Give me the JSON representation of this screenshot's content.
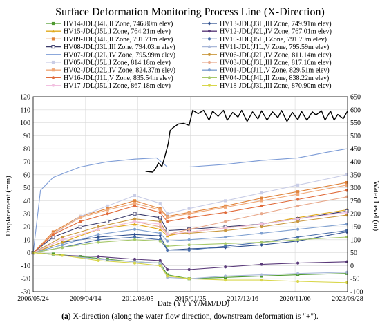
{
  "caption": {
    "label": "(a)",
    "text": " X-direction (along the water flow direction, downstream deformation is \"+\")."
  },
  "chart_data": {
    "type": "line",
    "title": "Surface Deformation Monitoring Process Line (X-Direction)",
    "xlabel": "Date (YYYY/MM/DD)",
    "ylabel": "Displacement (mm)",
    "y2label": "Water Level (m)",
    "x_ticks": [
      "2006/05/24",
      "2009/04/14",
      "2012/03/05",
      "2015/01/25",
      "2017/12/16",
      "2020/11/06",
      "2023/09/28"
    ],
    "xlim": [
      "2006/05/24",
      "2023/09/28"
    ],
    "ylim": [
      -30,
      120
    ],
    "y_ticks": [
      -30,
      -20,
      -10,
      0,
      10,
      20,
      30,
      40,
      50,
      60,
      70,
      80,
      90,
      100,
      110,
      120
    ],
    "y2lim": [
      -100,
      650
    ],
    "y2_ticks": [
      -100,
      -50,
      0,
      50,
      100,
      150,
      200,
      250,
      300,
      350,
      400,
      450,
      500,
      550,
      600,
      650
    ],
    "grid": true,
    "legend_position": "top",
    "series": [
      {
        "name": "HV14-JDL(J4L,II Zone, 746.80m elev)",
        "color": "#4e9a2f",
        "marker": "square",
        "axis": "left",
        "values": [
          [
            2006.4,
            0
          ],
          [
            2007.5,
            -1
          ],
          [
            2009,
            -3
          ],
          [
            2010.5,
            -5
          ],
          [
            2012,
            -7
          ],
          [
            2013.4,
            -8
          ],
          [
            2013.8,
            -17
          ],
          [
            2015,
            -20
          ],
          [
            2017,
            -19
          ],
          [
            2019,
            -18
          ],
          [
            2021,
            -17
          ],
          [
            2023.7,
            -16
          ]
        ]
      },
      {
        "name": "HV13-JDL(J3L,III Zone, 749.91m elev)",
        "color": "#2f4f8f",
        "marker": "diamond",
        "axis": "left",
        "values": [
          [
            2006.4,
            0
          ],
          [
            2008,
            8
          ],
          [
            2010,
            12
          ],
          [
            2012,
            14
          ],
          [
            2013.4,
            13
          ],
          [
            2013.8,
            2
          ],
          [
            2015,
            3
          ],
          [
            2017,
            4
          ],
          [
            2019,
            6
          ],
          [
            2021,
            9
          ],
          [
            2023.7,
            16
          ]
        ]
      },
      {
        "name": "HV15-JDL(J5L,I Zone, 764.21m elev)",
        "color": "#e0a818",
        "marker": "triangle",
        "axis": "left",
        "values": [
          [
            2006.4,
            0
          ],
          [
            2008,
            8
          ],
          [
            2010,
            18
          ],
          [
            2012,
            22
          ],
          [
            2013.4,
            18
          ],
          [
            2013.8,
            13
          ],
          [
            2015,
            16
          ],
          [
            2017,
            19
          ],
          [
            2019,
            22
          ],
          [
            2021,
            27
          ],
          [
            2023.7,
            33
          ]
        ]
      },
      {
        "name": "HV12-JDL(J2L,IV Zone, 767.01m elev)",
        "color": "#5a3a7a",
        "marker": "circle",
        "axis": "left",
        "values": [
          [
            2006.4,
            0
          ],
          [
            2008,
            -2
          ],
          [
            2010,
            -3
          ],
          [
            2012,
            -5
          ],
          [
            2013.4,
            -6
          ],
          [
            2013.8,
            -13
          ],
          [
            2015,
            -13
          ],
          [
            2017,
            -11
          ],
          [
            2019,
            -9
          ],
          [
            2021,
            -8
          ],
          [
            2023.7,
            -7
          ]
        ]
      },
      {
        "name": "HV09-JDL(J4L,II Zone, 791.71m elev)",
        "color": "#e0833a",
        "marker": "square",
        "axis": "left",
        "values": [
          [
            2006.4,
            0
          ],
          [
            2007.5,
            16
          ],
          [
            2009,
            28
          ],
          [
            2010.5,
            34
          ],
          [
            2012,
            40
          ],
          [
            2013.4,
            34
          ],
          [
            2013.8,
            28
          ],
          [
            2015,
            31
          ],
          [
            2017,
            36
          ],
          [
            2019,
            42
          ],
          [
            2021,
            47
          ],
          [
            2023.7,
            54
          ]
        ]
      },
      {
        "name": "HV10-JDL(J5L,I Zone, 791.79m elev)",
        "color": "#4a6faa",
        "marker": "circle",
        "axis": "left",
        "values": [
          [
            2006.4,
            0
          ],
          [
            2008,
            4
          ],
          [
            2010,
            10
          ],
          [
            2012,
            12
          ],
          [
            2013.4,
            10
          ],
          [
            2013.8,
            2
          ],
          [
            2015,
            2
          ],
          [
            2017,
            5
          ],
          [
            2019,
            8
          ],
          [
            2021,
            12
          ],
          [
            2023.7,
            17
          ]
        ]
      },
      {
        "name": "HV08-JDL(J3L,III Zone, 794.03m elev)",
        "color": "#3a3a6a",
        "marker": "square-open",
        "axis": "left",
        "values": [
          [
            2006.4,
            0
          ],
          [
            2007.5,
            12
          ],
          [
            2009,
            20
          ],
          [
            2010.5,
            24
          ],
          [
            2012,
            30
          ],
          [
            2013.4,
            27
          ],
          [
            2013.8,
            17
          ],
          [
            2015,
            18
          ],
          [
            2017,
            20
          ],
          [
            2019,
            22
          ],
          [
            2021,
            26
          ],
          [
            2023.7,
            32
          ]
        ]
      },
      {
        "name": "HV11-JDL(J1L,V Zone, 795.59m elev)",
        "color": "#a9b8d9",
        "marker": "circle",
        "axis": "left",
        "values": [
          [
            2006.4,
            0
          ],
          [
            2008,
            -2
          ],
          [
            2010,
            -5
          ],
          [
            2012,
            -7
          ],
          [
            2013.4,
            -8
          ],
          [
            2013.8,
            -19
          ],
          [
            2015,
            -20
          ],
          [
            2017,
            -18
          ],
          [
            2019,
            -17
          ],
          [
            2021,
            -16
          ],
          [
            2023.7,
            -15
          ]
        ]
      },
      {
        "name": "HV07-JDL(J2L,IV Zone, 795.99m elev)",
        "color": "#7c9bd6",
        "marker": "none",
        "axis": "left",
        "values": [
          [
            2006.4,
            0
          ],
          [
            2006.8,
            48
          ],
          [
            2007.5,
            58
          ],
          [
            2009,
            66
          ],
          [
            2010.5,
            70
          ],
          [
            2012,
            72
          ],
          [
            2013.2,
            73
          ],
          [
            2013.8,
            66
          ],
          [
            2015,
            66
          ],
          [
            2017,
            68
          ],
          [
            2019,
            71
          ],
          [
            2021,
            73
          ],
          [
            2022.5,
            77
          ],
          [
            2023.7,
            80
          ]
        ]
      },
      {
        "name": "HV06-JDL(J2L,IV Zone, 811.14m elev)",
        "color": "#c9973c",
        "marker": "circle",
        "axis": "left",
        "values": [
          [
            2006.4,
            0
          ],
          [
            2008,
            12
          ],
          [
            2010,
            20
          ],
          [
            2012,
            26
          ],
          [
            2013.4,
            24
          ],
          [
            2013.8,
            14
          ],
          [
            2015,
            15
          ],
          [
            2017,
            17
          ],
          [
            2019,
            20
          ],
          [
            2021,
            24
          ],
          [
            2023.7,
            29
          ]
        ]
      },
      {
        "name": "HV05-JDL(J5L,I Zone, 814.18m elev)",
        "color": "#c9cde6",
        "marker": "square",
        "axis": "left",
        "values": [
          [
            2006.4,
            0
          ],
          [
            2007.5,
            14
          ],
          [
            2009,
            28
          ],
          [
            2010.5,
            36
          ],
          [
            2012,
            44
          ],
          [
            2013.4,
            38
          ],
          [
            2013.8,
            30
          ],
          [
            2015,
            34
          ],
          [
            2017,
            40
          ],
          [
            2019,
            46
          ],
          [
            2021,
            52
          ],
          [
            2023.7,
            60
          ]
        ]
      },
      {
        "name": "HV03-JDL(J3L,III Zone, 817.16m elev)",
        "color": "#e8a98c",
        "marker": "circle",
        "axis": "left",
        "values": [
          [
            2006.4,
            0
          ],
          [
            2008,
            10
          ],
          [
            2010,
            18
          ],
          [
            2012,
            24
          ],
          [
            2013.4,
            20
          ],
          [
            2013.8,
            14
          ],
          [
            2015,
            18
          ],
          [
            2017,
            24
          ],
          [
            2019,
            30
          ],
          [
            2021,
            36
          ],
          [
            2023.7,
            43
          ]
        ]
      },
      {
        "name": "HV02-JDL(J2L,IV Zone, 824.37m elev)",
        "color": "#f0a878",
        "marker": "square",
        "axis": "left",
        "values": [
          [
            2006.4,
            0
          ],
          [
            2007.5,
            15
          ],
          [
            2009,
            27
          ],
          [
            2010.5,
            33
          ],
          [
            2012,
            38
          ],
          [
            2013.4,
            33
          ],
          [
            2013.8,
            27
          ],
          [
            2015,
            30
          ],
          [
            2017,
            35
          ],
          [
            2019,
            40
          ],
          [
            2021,
            45
          ],
          [
            2023.7,
            52
          ]
        ]
      },
      {
        "name": "HV01-JDL(J1L,V Zone, 829.51m elev)",
        "color": "#7fa0d0",
        "marker": "circle",
        "axis": "left",
        "values": [
          [
            2006.4,
            0
          ],
          [
            2008,
            6
          ],
          [
            2010,
            14
          ],
          [
            2012,
            18
          ],
          [
            2013.4,
            15
          ],
          [
            2013.8,
            9
          ],
          [
            2015,
            10
          ],
          [
            2017,
            12
          ],
          [
            2019,
            15
          ],
          [
            2021,
            18
          ],
          [
            2023.7,
            22
          ]
        ]
      },
      {
        "name": "HV16-JDL(J1L,V Zone, 835.54m elev)",
        "color": "#e06a3a",
        "marker": "circle",
        "axis": "left",
        "values": [
          [
            2006.4,
            0
          ],
          [
            2007.5,
            14
          ],
          [
            2009,
            24
          ],
          [
            2010.5,
            30
          ],
          [
            2012,
            36
          ],
          [
            2013.4,
            31
          ],
          [
            2013.8,
            24
          ],
          [
            2015,
            27
          ],
          [
            2017,
            31
          ],
          [
            2019,
            36
          ],
          [
            2021,
            41
          ],
          [
            2023.7,
            48
          ]
        ]
      },
      {
        "name": "HV04-JDL(J4L,II Zone, 838.22m elev)",
        "color": "#a6c86a",
        "marker": "circle",
        "axis": "left",
        "values": [
          [
            2006.4,
            0
          ],
          [
            2008,
            4
          ],
          [
            2010,
            8
          ],
          [
            2012,
            10
          ],
          [
            2013.4,
            9
          ],
          [
            2013.8,
            5
          ],
          [
            2015,
            6
          ],
          [
            2017,
            7
          ],
          [
            2019,
            8
          ],
          [
            2021,
            10
          ],
          [
            2023.7,
            12
          ]
        ]
      },
      {
        "name": "HV17-JDL(J5L,I Zone, 867.18m elev)",
        "color": "#f2c0e0",
        "marker": "circle",
        "axis": "left",
        "values": [
          [
            2006.4,
            0
          ],
          [
            2008,
            10
          ],
          [
            2010,
            18
          ],
          [
            2012,
            24
          ],
          [
            2013.4,
            22
          ],
          [
            2013.8,
            14
          ],
          [
            2015,
            16
          ],
          [
            2017,
            19
          ],
          [
            2019,
            22
          ],
          [
            2021,
            26
          ],
          [
            2023.7,
            31
          ]
        ]
      },
      {
        "name": "HV18-JDL(J3L,III Zone, 870.90m elev)",
        "color": "#d8d64a",
        "marker": "circle",
        "axis": "left",
        "values": [
          [
            2006.4,
            0
          ],
          [
            2008,
            -2
          ],
          [
            2010,
            -6
          ],
          [
            2012,
            -8
          ],
          [
            2013.4,
            -10
          ],
          [
            2013.8,
            -18
          ],
          [
            2015,
            -20
          ],
          [
            2017,
            -21
          ],
          [
            2019,
            -21
          ],
          [
            2021,
            -22
          ],
          [
            2023.7,
            -23
          ]
        ]
      },
      {
        "name": "",
        "color": "#000000",
        "marker": "none",
        "axis": "right",
        "values": [
          [
            2012.6,
            363
          ],
          [
            2013.0,
            360
          ],
          [
            2013.2,
            380
          ],
          [
            2013.3,
            395
          ],
          [
            2013.5,
            382
          ],
          [
            2013.6,
            405
          ],
          [
            2013.7,
            430
          ],
          [
            2013.85,
            470
          ],
          [
            2013.95,
            520
          ],
          [
            2014.1,
            530
          ],
          [
            2014.4,
            545
          ],
          [
            2014.7,
            548
          ],
          [
            2015.0,
            540
          ],
          [
            2015.2,
            598
          ],
          [
            2015.5,
            585
          ],
          [
            2015.8,
            598
          ],
          [
            2016.1,
            560
          ],
          [
            2016.3,
            595
          ],
          [
            2016.6,
            575
          ],
          [
            2016.9,
            598
          ],
          [
            2017.1,
            560
          ],
          [
            2017.4,
            590
          ],
          [
            2017.7,
            572
          ],
          [
            2017.9,
            598
          ],
          [
            2018.2,
            555
          ],
          [
            2018.5,
            592
          ],
          [
            2018.8,
            565
          ],
          [
            2019.0,
            596
          ],
          [
            2019.3,
            560
          ],
          [
            2019.6,
            592
          ],
          [
            2019.9,
            570
          ],
          [
            2020.1,
            597
          ],
          [
            2020.4,
            555
          ],
          [
            2020.7,
            590
          ],
          [
            2021.0,
            562
          ],
          [
            2021.2,
            594
          ],
          [
            2021.5,
            560
          ],
          [
            2021.8,
            592
          ],
          [
            2022.0,
            580
          ],
          [
            2022.3,
            596
          ],
          [
            2022.5,
            560
          ],
          [
            2022.8,
            595
          ],
          [
            2023.0,
            560
          ],
          [
            2023.2,
            582
          ],
          [
            2023.5,
            566
          ],
          [
            2023.75,
            596
          ]
        ]
      }
    ]
  }
}
